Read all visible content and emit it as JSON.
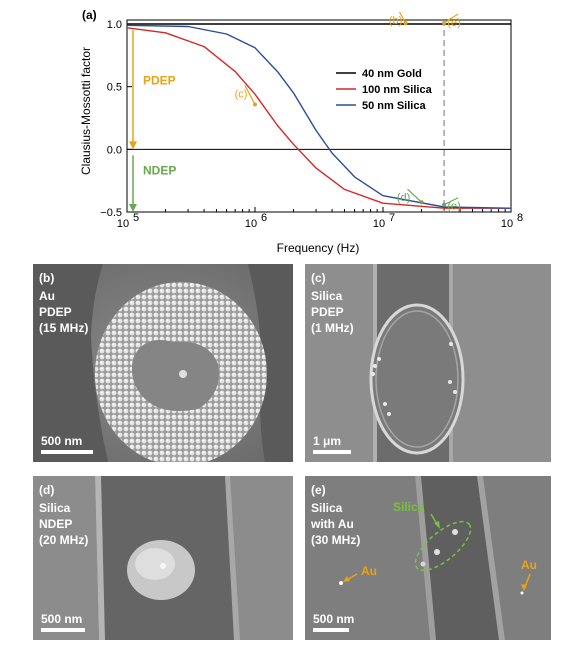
{
  "figure": {
    "panel_a_label": "(a)"
  },
  "chart_data": {
    "type": "line",
    "xscale": "log",
    "xlim": [
      100000,
      100000000
    ],
    "ylim": [
      -0.5,
      1.0
    ],
    "xlabel": "Frequency (Hz)",
    "ylabel": "Clausius-Mossotti factor",
    "x_ticks": [
      {
        "value": 100000,
        "base": "10",
        "exp": "5"
      },
      {
        "value": 1000000,
        "base": "10",
        "exp": "6"
      },
      {
        "value": 10000000,
        "base": "10",
        "exp": "7"
      },
      {
        "value": 100000000,
        "base": "10",
        "exp": "8"
      }
    ],
    "y_ticks": [
      {
        "value": 1.0,
        "label": "1.0"
      },
      {
        "value": 0.5,
        "label": "0.5"
      },
      {
        "value": 0.0,
        "label": "0.0"
      },
      {
        "value": -0.5,
        "label": "−0.5"
      }
    ],
    "legend_position": "center-right",
    "series": [
      {
        "name": "40 nm Gold",
        "color": "#000000",
        "x": [
          100000,
          1000000,
          10000000,
          100000000
        ],
        "y": [
          1.0,
          1.0,
          1.0,
          1.0
        ]
      },
      {
        "name": "100 nm Silica",
        "color": "#d62728",
        "x": [
          100000,
          200000,
          400000,
          700000,
          1000000,
          1500000,
          2000000,
          3000000,
          5000000,
          10000000,
          30000000,
          100000000
        ],
        "y": [
          0.97,
          0.93,
          0.82,
          0.62,
          0.44,
          0.19,
          0.04,
          -0.15,
          -0.32,
          -0.43,
          -0.47,
          -0.47
        ]
      },
      {
        "name": "50 nm Silica",
        "color": "#2a4d9b",
        "x": [
          100000,
          300000,
          600000,
          1000000,
          1500000,
          2000000,
          3000000,
          4000000,
          6000000,
          10000000,
          30000000,
          100000000
        ],
        "y": [
          0.99,
          0.98,
          0.92,
          0.81,
          0.62,
          0.45,
          0.15,
          -0.03,
          -0.22,
          -0.37,
          -0.46,
          -0.47
        ]
      }
    ],
    "reference_lines": [
      {
        "axis": "y",
        "value": 0.0,
        "color": "#000000",
        "style": "solid"
      },
      {
        "axis": "x",
        "value": 30000000,
        "color": "#888888",
        "style": "dashed"
      }
    ],
    "regions": [
      {
        "label": "PDEP",
        "from": 1.0,
        "to": 0.0,
        "color": "#e8a317"
      },
      {
        "label": "NDEP",
        "from": 0.0,
        "to": -0.5,
        "color": "#6aa84f"
      }
    ],
    "annotations": [
      {
        "label": "(b)",
        "x": 15000000,
        "y": 1.0,
        "color": "#e8a317"
      },
      {
        "label": "(c)",
        "x": 1000000,
        "y": 0.35,
        "color": "#e8a317"
      },
      {
        "label": "(d)",
        "x": 20000000,
        "y": -0.43,
        "color": "#6aa84f"
      },
      {
        "label": "(e)",
        "x": 30000000,
        "y": 1.0,
        "color": "#e8a317"
      },
      {
        "label": "(e)",
        "x": 30000000,
        "y": -0.45,
        "color": "#6aa84f"
      }
    ]
  },
  "panels": [
    {
      "id": "b",
      "label": "(b)",
      "lines": [
        "Au",
        "PDEP",
        "(15 MHz)"
      ],
      "scalebar": "500 nm"
    },
    {
      "id": "c",
      "label": "(c)",
      "lines": [
        "Silica",
        "PDEP",
        "(1 MHz)"
      ],
      "scalebar": "1 μm"
    },
    {
      "id": "d",
      "label": "(d)",
      "lines": [
        "Silica",
        "NDEP",
        "(20 MHz)"
      ],
      "scalebar": "500 nm"
    },
    {
      "id": "e",
      "label": "(e)",
      "lines": [
        "Silica",
        "with Au",
        "(30 MHz)"
      ],
      "scalebar": "500 nm",
      "tags": {
        "silica": "Silica",
        "au_left": "Au",
        "au_right": "Au"
      }
    }
  ]
}
